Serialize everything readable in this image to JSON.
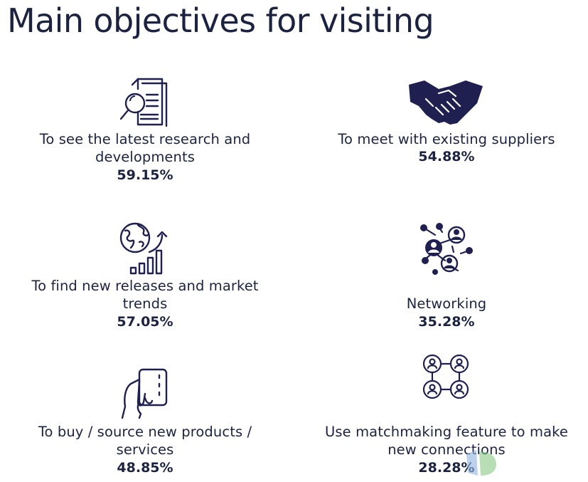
{
  "title": "Main objectives for visiting",
  "colors": {
    "text": "#1c2340",
    "icon": "#1f2050",
    "background": "#ffffff"
  },
  "objectives": [
    {
      "icon": "research-document-magnifier-icon",
      "label_line1": "To see the latest research and",
      "label_line2": "developments",
      "percent": "59.15%"
    },
    {
      "icon": "handshake-icon",
      "label_line1": "To meet with existing suppliers",
      "percent": "54.88%"
    },
    {
      "icon": "globe-growth-chart-icon",
      "label_line1": "To find new releases and market",
      "label_line2": "trends",
      "percent": "57.05%"
    },
    {
      "icon": "network-people-icon",
      "label_line1": "Networking",
      "percent": "35.28%"
    },
    {
      "icon": "hand-holding-card-icon",
      "label_line1": "To buy / source new products /",
      "label_line2": "services",
      "percent": "48.85%"
    },
    {
      "icon": "matchmaking-people-grid-icon",
      "label_line1": "Use matchmaking feature to make",
      "label_line2": "new connections",
      "percent": "28.28%"
    }
  ]
}
